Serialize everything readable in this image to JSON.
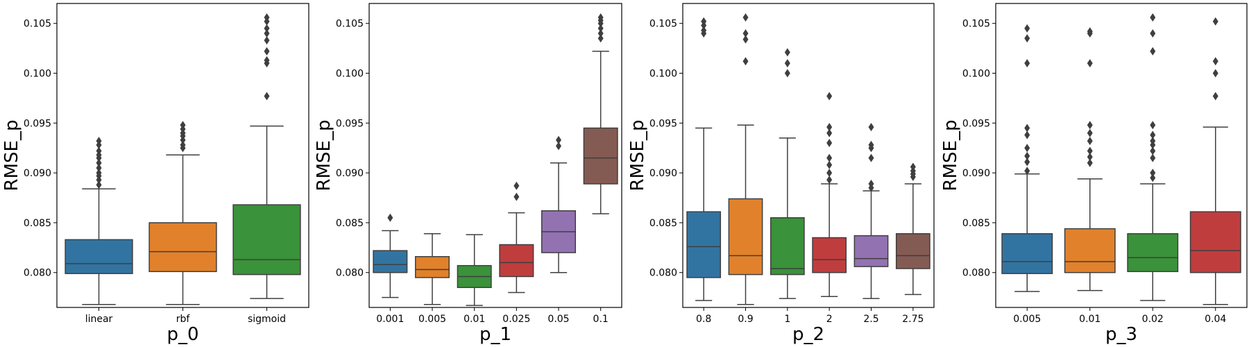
{
  "chart_data": [
    {
      "type": "box",
      "xlabel": "p_0",
      "ylabel": "RMSE_p",
      "ylim": [
        0.0765,
        0.107
      ],
      "yticks": [
        "0.080",
        "0.085",
        "0.090",
        "0.095",
        "0.100",
        "0.105"
      ],
      "categories": [
        "linear",
        "rbf",
        "sigmoid"
      ],
      "colors": [
        "#3274a1",
        "#e1812c",
        "#3a923a"
      ],
      "boxes": [
        {
          "whislo": 0.0768,
          "q1": 0.0799,
          "med": 0.0809,
          "q3": 0.0833,
          "whishi": 0.0884,
          "fliers": [
            0.0888,
            0.0893,
            0.0897,
            0.09,
            0.0905,
            0.091,
            0.0915,
            0.0918,
            0.0922,
            0.0928,
            0.0932
          ]
        },
        {
          "whislo": 0.0768,
          "q1": 0.0801,
          "med": 0.0821,
          "q3": 0.085,
          "whishi": 0.0918,
          "fliers": [
            0.0925,
            0.0928,
            0.0933,
            0.0937,
            0.094,
            0.0944,
            0.0948
          ]
        },
        {
          "whislo": 0.0774,
          "q1": 0.0798,
          "med": 0.0813,
          "q3": 0.0868,
          "whishi": 0.0947,
          "fliers": [
            0.0977,
            0.101,
            0.1013,
            0.1022,
            0.1033,
            0.104,
            0.1045,
            0.1052,
            0.1056
          ]
        }
      ]
    },
    {
      "type": "box",
      "xlabel": "p_1",
      "ylabel": "RMSE_p",
      "ylim": [
        0.0765,
        0.107
      ],
      "yticks": [
        "0.080",
        "0.085",
        "0.090",
        "0.095",
        "0.100",
        "0.105"
      ],
      "categories": [
        "0.001",
        "0.005",
        "0.01",
        "0.025",
        "0.05",
        "0.1"
      ],
      "colors": [
        "#3274a1",
        "#e1812c",
        "#3a923a",
        "#c03d3e",
        "#9372b2",
        "#845b53"
      ],
      "boxes": [
        {
          "whislo": 0.0775,
          "q1": 0.08,
          "med": 0.0808,
          "q3": 0.0822,
          "whishi": 0.0842,
          "fliers": [
            0.0855
          ]
        },
        {
          "whislo": 0.0768,
          "q1": 0.0795,
          "med": 0.0803,
          "q3": 0.0816,
          "whishi": 0.0839,
          "fliers": []
        },
        {
          "whislo": 0.0767,
          "q1": 0.0785,
          "med": 0.0796,
          "q3": 0.0807,
          "whishi": 0.0838,
          "fliers": []
        },
        {
          "whislo": 0.078,
          "q1": 0.0796,
          "med": 0.081,
          "q3": 0.0828,
          "whishi": 0.086,
          "fliers": [
            0.0876,
            0.0887
          ]
        },
        {
          "whislo": 0.08,
          "q1": 0.082,
          "med": 0.0841,
          "q3": 0.0862,
          "whishi": 0.091,
          "fliers": [
            0.0927,
            0.0933
          ]
        },
        {
          "whislo": 0.0859,
          "q1": 0.0889,
          "med": 0.0915,
          "q3": 0.0945,
          "whishi": 0.1022,
          "fliers": [
            0.1035,
            0.104,
            0.1045,
            0.105,
            0.1053,
            0.1056
          ]
        }
      ]
    },
    {
      "type": "box",
      "xlabel": "p_2",
      "ylabel": "RMSE_p",
      "ylim": [
        0.0765,
        0.107
      ],
      "yticks": [
        "0.080",
        "0.085",
        "0.090",
        "0.095",
        "0.100",
        "0.105"
      ],
      "categories": [
        "0.8",
        "0.9",
        "1",
        "2",
        "2.5",
        "2.75"
      ],
      "colors": [
        "#3274a1",
        "#e1812c",
        "#3a923a",
        "#c03d3e",
        "#9372b2",
        "#845b53"
      ],
      "boxes": [
        {
          "whislo": 0.0772,
          "q1": 0.0795,
          "med": 0.0826,
          "q3": 0.0861,
          "whishi": 0.0945,
          "fliers": [
            0.104,
            0.1043,
            0.1048,
            0.1052
          ]
        },
        {
          "whislo": 0.0768,
          "q1": 0.0798,
          "med": 0.0817,
          "q3": 0.0874,
          "whishi": 0.0948,
          "fliers": [
            0.1012,
            0.1034,
            0.104,
            0.1056
          ]
        },
        {
          "whislo": 0.0774,
          "q1": 0.0798,
          "med": 0.0804,
          "q3": 0.0855,
          "whishi": 0.0935,
          "fliers": [
            0.1,
            0.101,
            0.1021
          ]
        },
        {
          "whislo": 0.0776,
          "q1": 0.08,
          "med": 0.0813,
          "q3": 0.0835,
          "whishi": 0.0889,
          "fliers": [
            0.0893,
            0.09,
            0.0908,
            0.0915,
            0.093,
            0.094,
            0.0946,
            0.0977
          ]
        },
        {
          "whislo": 0.0774,
          "q1": 0.0806,
          "med": 0.0814,
          "q3": 0.0837,
          "whishi": 0.0882,
          "fliers": [
            0.0885,
            0.0889,
            0.0915,
            0.0925,
            0.0928,
            0.0946
          ]
        },
        {
          "whislo": 0.0778,
          "q1": 0.0804,
          "med": 0.0817,
          "q3": 0.0839,
          "whishi": 0.0889,
          "fliers": [
            0.0896,
            0.0899,
            0.0902,
            0.0906
          ]
        }
      ]
    },
    {
      "type": "box",
      "xlabel": "p_3",
      "ylabel": "RMSE_p",
      "ylim": [
        0.0765,
        0.107
      ],
      "yticks": [
        "0.080",
        "0.085",
        "0.090",
        "0.095",
        "0.100",
        "0.105"
      ],
      "categories": [
        "0.005",
        "0.01",
        "0.02",
        "0.04"
      ],
      "colors": [
        "#3274a1",
        "#e1812c",
        "#3a923a",
        "#c03d3e"
      ],
      "boxes": [
        {
          "whislo": 0.0781,
          "q1": 0.0799,
          "med": 0.0811,
          "q3": 0.0839,
          "whishi": 0.0899,
          "fliers": [
            0.0902,
            0.0911,
            0.0917,
            0.0925,
            0.0938,
            0.0945,
            0.101,
            0.1035,
            0.1045
          ]
        },
        {
          "whislo": 0.0782,
          "q1": 0.08,
          "med": 0.0811,
          "q3": 0.0844,
          "whishi": 0.0894,
          "fliers": [
            0.091,
            0.0916,
            0.0922,
            0.0932,
            0.094,
            0.0948,
            0.101,
            0.104,
            0.1042
          ]
        },
        {
          "whislo": 0.0772,
          "q1": 0.0801,
          "med": 0.0815,
          "q3": 0.0839,
          "whishi": 0.0889,
          "fliers": [
            0.0895,
            0.09,
            0.0915,
            0.0922,
            0.0928,
            0.0932,
            0.0938,
            0.0948,
            0.1022,
            0.104,
            0.1056
          ]
        },
        {
          "whislo": 0.0768,
          "q1": 0.08,
          "med": 0.0822,
          "q3": 0.0861,
          "whishi": 0.0946,
          "fliers": [
            0.0977,
            0.1,
            0.1012,
            0.1052
          ]
        }
      ]
    }
  ]
}
